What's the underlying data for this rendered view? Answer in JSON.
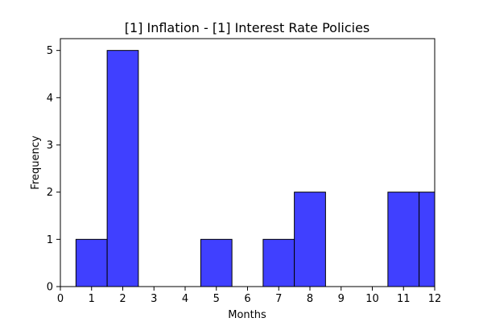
{
  "chart_data": {
    "type": "bar",
    "title": "[1] Inflation - [1] Interest Rate Policies",
    "xlabel": "Months",
    "ylabel": "Frequency",
    "xlim": [
      0,
      12
    ],
    "ylim": [
      0,
      5.25
    ],
    "x_ticks": [
      0,
      1,
      2,
      3,
      4,
      5,
      6,
      7,
      8,
      9,
      10,
      11,
      12
    ],
    "y_ticks": [
      0,
      1,
      2,
      3,
      4,
      5
    ],
    "bar_color": "#4040ff",
    "bars": [
      {
        "x0": 0.5,
        "x1": 1.5,
        "value": 1
      },
      {
        "x0": 1.5,
        "x1": 2.5,
        "value": 5
      },
      {
        "x0": 4.5,
        "x1": 5.5,
        "value": 1
      },
      {
        "x0": 6.5,
        "x1": 7.5,
        "value": 1
      },
      {
        "x0": 7.5,
        "x1": 8.5,
        "value": 2
      },
      {
        "x0": 10.5,
        "x1": 11.5,
        "value": 2
      },
      {
        "x0": 11.5,
        "x1": 12.5,
        "value": 2
      }
    ],
    "grid": false,
    "legend": "none"
  }
}
